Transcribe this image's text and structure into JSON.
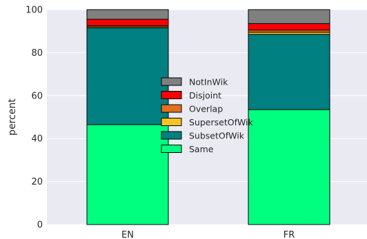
{
  "chart_data": {
    "type": "bar",
    "stacked": true,
    "categories": [
      "EN",
      "FR"
    ],
    "ylabel": "percent",
    "xlabel": "",
    "title": "",
    "ylim": [
      0,
      100
    ],
    "yticks": [
      0,
      20,
      40,
      60,
      80,
      100
    ],
    "grid": true,
    "legend_position": "center",
    "series": [
      {
        "name": "Same",
        "color": "#00ff7f",
        "values": [
          46.5,
          53.5
        ]
      },
      {
        "name": "SubsetOfWik",
        "color": "#008080",
        "values": [
          45.0,
          35.0
        ]
      },
      {
        "name": "SupersetOfWik",
        "color": "#ffc125",
        "values": [
          0.5,
          1.0
        ]
      },
      {
        "name": "Overlap",
        "color": "#e07020",
        "values": [
          0.5,
          1.0
        ]
      },
      {
        "name": "Disjoint",
        "color": "#ff0000",
        "values": [
          3.0,
          3.0
        ]
      },
      {
        "name": "NotInWik",
        "color": "#808080",
        "values": [
          4.5,
          6.5
        ]
      }
    ],
    "legend_order": [
      "NotInWik",
      "Disjoint",
      "Overlap",
      "SupersetOfWik",
      "SubsetOfWik",
      "Same"
    ]
  },
  "colors": {
    "plot_background": "#eaeaf2",
    "grid": "#ffffff",
    "bar_edge": "#000000"
  }
}
